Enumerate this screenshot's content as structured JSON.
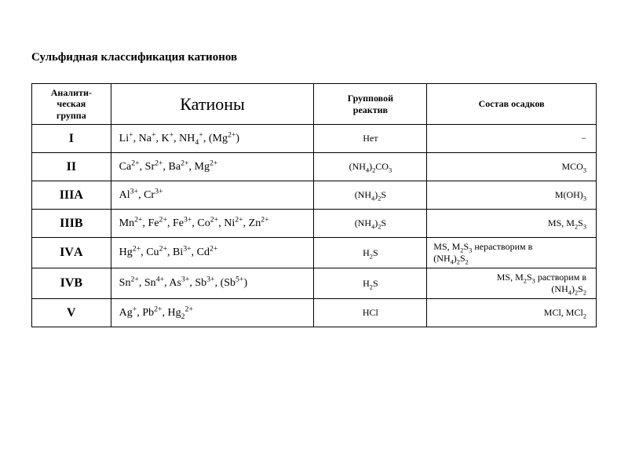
{
  "title": "Сульфидная классификация катионов",
  "columns": {
    "analytical_group": "Аналити-\nческая\nгруппа",
    "cations": "Катионы",
    "reagent": "Групповой\nреактив",
    "precipitate": "Состав осадков"
  },
  "rows": [
    {
      "group": "I",
      "cations_html": "Li<sup>+</sup>, Na<sup>+</sup>, K<sup>+</sup>, NH<sub>4</sub><sup>+</sup>, (Mg<sup>2+</sup>)",
      "reagent_html": "Нет",
      "precipitate_html": "−",
      "precipitate_align": "right"
    },
    {
      "group": "II",
      "cations_html": "Ca<sup>2+</sup>, Sr<sup>2+</sup>, Ba<sup>2+</sup>, Mg<sup>2+</sup>",
      "reagent_html": "(NH<sub>4</sub>)<sub>2</sub>CO<sub>3</sub>",
      "precipitate_html": "MCO<sub>3</sub>",
      "precipitate_align": "right"
    },
    {
      "group": "IIIA",
      "cations_html": "Al<sup>3+</sup>, Cr<sup>3+</sup>",
      "reagent_html": "(NH<sub>4</sub>)<sub>2</sub>S",
      "precipitate_html": "M(OH)<sub>3</sub>",
      "precipitate_align": "right"
    },
    {
      "group": "IIIB",
      "cations_html": "Mn<sup>2+</sup>, Fe<sup>2+</sup>, Fe<sup>3+</sup>, Co<sup>2+</sup>, Ni<sup>2+</sup>, Zn<sup>2+</sup>",
      "reagent_html": "(NH<sub>4</sub>)<sub>2</sub>S",
      "precipitate_html": "MS, M<sub>2</sub>S<sub>3</sub>",
      "precipitate_align": "right"
    },
    {
      "group": "IVА",
      "cations_html": "Hg<sup>2+</sup>, Cu<sup>2+</sup>, Bi<sup>3+</sup>, Cd<sup>2+</sup>",
      "reagent_html": "H<sub>2</sub>S",
      "precipitate_html": "MS, M<sub>2</sub>S<sub>3</sub> нерастворим в<br>(NH<sub>4</sub>)<sub>2</sub>S<sub>2</sub>",
      "precipitate_align": "left"
    },
    {
      "group": "IVВ",
      "cations_html": "Sn<sup>2+</sup>, Sn<sup>4+</sup>, As<sup>3+</sup>, Sb<sup>3+</sup>, (Sb<sup>5+</sup>)",
      "reagent_html": "H<sub>2</sub>S",
      "precipitate_html": "&nbsp;&nbsp;&nbsp;MS, M<sub>2</sub>S<sub>3</sub> растворим в<br>(NH<sub>4</sub>)<sub>2</sub>S<sub>2</sub>",
      "precipitate_align": "right"
    },
    {
      "group": "V",
      "cations_html": "Ag<sup>+</sup>, Pb<sup>2+</sup>, Hg<sub>2</sub><sup>2+</sup>",
      "reagent_html": "HCl",
      "precipitate_html": "MCl, MCl<sub>2</sub>",
      "precipitate_align": "right"
    }
  ],
  "style": {
    "background": "#ffffff",
    "border_color": "#000000",
    "font": "Times New Roman",
    "title_fontsize": 15,
    "header_fontsize": 12,
    "cations_header_fontsize": 22,
    "group_fontsize": 16,
    "cell_fontsize": 14,
    "small_fontsize": 12
  }
}
